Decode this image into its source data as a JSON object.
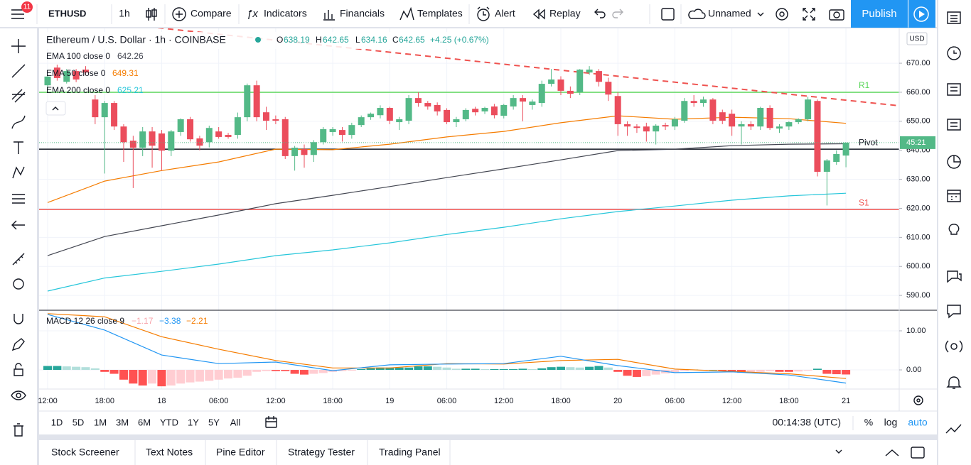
{
  "toolbar": {
    "notification_count": 11,
    "symbol": "ETHUSD",
    "interval": "1h",
    "buttons": [
      "Compare",
      "Indicators",
      "Financials",
      "Templates",
      "Alert",
      "Replay"
    ],
    "layout_name": "Unnamed",
    "publish": "Publish"
  },
  "chart": {
    "title": "Ethereum / U.S. Dollar · 1h · COINBASE",
    "ohlc_names": [
      "O",
      "H",
      "L",
      "C"
    ],
    "ohlc": [
      "638.19",
      "642.65",
      "634.16",
      "642.65"
    ],
    "change": "+4.25 (+0.67%)",
    "currency": "USD",
    "countdown": "45:21",
    "grid": true,
    "up_color": "#53b987",
    "down_color": "#eb4d5c",
    "ylim": [
      584.9,
      682
    ],
    "yticks": [
      {
        "value": 670,
        "label": "670.00"
      },
      {
        "value": 660,
        "label": "660.00"
      },
      {
        "value": 650,
        "label": "650.00"
      },
      {
        "value": 640,
        "label": "640.00"
      },
      {
        "value": 630,
        "label": "630.00"
      },
      {
        "value": 620,
        "label": "620.00"
      },
      {
        "value": 610,
        "label": "610.00"
      },
      {
        "value": 600,
        "label": "600.00"
      },
      {
        "value": 590,
        "label": "590.00"
      }
    ],
    "time_labels": [
      "12:00",
      "18:00",
      "18",
      "06:00",
      "12:00",
      "18:00",
      "19",
      "06:00",
      "12:00",
      "18:00",
      "20",
      "06:00",
      "12:00",
      "18:00",
      "21"
    ],
    "candles": [
      [
        662.4,
        666,
        661,
        665.4
      ],
      [
        668.5,
        669.5,
        664,
        664.9
      ],
      [
        663.6,
        668,
        663,
        667.3
      ],
      [
        667.3,
        668,
        663.5,
        664.4
      ],
      [
        667.8,
        669,
        666,
        666.8
      ],
      [
        657.5,
        659,
        649,
        651.4
      ],
      [
        651.4,
        657,
        632,
        656.3
      ],
      [
        656.3,
        657,
        647,
        648.2
      ],
      [
        648.2,
        649,
        636,
        642.8
      ],
      [
        643.3,
        645,
        627,
        640.9
      ],
      [
        640.9,
        648,
        638,
        646.5
      ],
      [
        646.5,
        648,
        634,
        641.6
      ],
      [
        645.8,
        647,
        633,
        639.9
      ],
      [
        639.9,
        647,
        638,
        646.5
      ],
      [
        646.3,
        651,
        645,
        650.7
      ],
      [
        650.7,
        651.5,
        643,
        643.8
      ],
      [
        644.1,
        645,
        640,
        641.6
      ],
      [
        642.8,
        648.5,
        641,
        647.7
      ],
      [
        646.5,
        648,
        644,
        644.6
      ],
      [
        645.3,
        646,
        644,
        644.6
      ],
      [
        645.3,
        653,
        644,
        651.4
      ],
      [
        651.4,
        663,
        650,
        662.4
      ],
      [
        662.4,
        664,
        650,
        651.4
      ],
      [
        653.1,
        655,
        647,
        650.2
      ],
      [
        650.7,
        652,
        649,
        650.2
      ],
      [
        650.7,
        651.5,
        637,
        638
      ],
      [
        638,
        641.5,
        633,
        640.9
      ],
      [
        640.4,
        642,
        634,
        638.4
      ],
      [
        638.4,
        643.5,
        636,
        642.8
      ],
      [
        642.8,
        648,
        642,
        647.3
      ],
      [
        646.3,
        648,
        645,
        647.3
      ],
      [
        647,
        648,
        643,
        645.3
      ],
      [
        645.3,
        649.5,
        644,
        648.7
      ],
      [
        648.7,
        652,
        648,
        651.4
      ],
      [
        651.4,
        653,
        650.5,
        652.6
      ],
      [
        652.1,
        655.5,
        651,
        654.6
      ],
      [
        654.6,
        655,
        649,
        650.2
      ],
      [
        649.7,
        651.5,
        647,
        650.7
      ],
      [
        650.2,
        659,
        649,
        658
      ],
      [
        658,
        660,
        655,
        656.3
      ],
      [
        656.3,
        657,
        654,
        655.1
      ],
      [
        655.6,
        656.5,
        652,
        653.4
      ],
      [
        653.9,
        654.5,
        649,
        649.7
      ],
      [
        649.7,
        651.5,
        648,
        650.7
      ],
      [
        650.7,
        654.5,
        650,
        653.9
      ],
      [
        654.3,
        655,
        652,
        653.1
      ],
      [
        653.4,
        655,
        652.5,
        654.6
      ],
      [
        655.1,
        656,
        651,
        652.1
      ],
      [
        651.9,
        656,
        651,
        655.6
      ],
      [
        655.1,
        659,
        654,
        658
      ],
      [
        658,
        659,
        650,
        656.8
      ],
      [
        655.6,
        657.5,
        654,
        656.8
      ],
      [
        656.3,
        664,
        655,
        662.9
      ],
      [
        662.9,
        668,
        662,
        664.4
      ],
      [
        664.4,
        665.5,
        659,
        660.5
      ],
      [
        660.5,
        662,
        658,
        659.5
      ],
      [
        660,
        668,
        659,
        667.8
      ],
      [
        666.8,
        669,
        666,
        667.8
      ],
      [
        667.3,
        668,
        662,
        663.6
      ],
      [
        663.6,
        665,
        657,
        659.2
      ],
      [
        658.7,
        660,
        645,
        649
      ],
      [
        649,
        650,
        645,
        648.2
      ],
      [
        648.2,
        649,
        646,
        647.7
      ],
      [
        648.2,
        649.5,
        643,
        646.5
      ],
      [
        646.5,
        649,
        642,
        648.5
      ],
      [
        648.7,
        649.5,
        647,
        648.2
      ],
      [
        648.2,
        651.5,
        647,
        650.7
      ],
      [
        650.2,
        658,
        649.5,
        657
      ],
      [
        657,
        659,
        655,
        656.3
      ],
      [
        656.3,
        658.5,
        655,
        657.5
      ],
      [
        657.5,
        658,
        649,
        650.2
      ],
      [
        653.1,
        654,
        649,
        650.2
      ],
      [
        652.6,
        654,
        645,
        648.2
      ],
      [
        648.2,
        650,
        642,
        649
      ],
      [
        649,
        650,
        647,
        648.2
      ],
      [
        648.2,
        655,
        647,
        654.6
      ],
      [
        654.6,
        655.5,
        647,
        647.7
      ],
      [
        647.5,
        649,
        646,
        648.2
      ],
      [
        648.2,
        650,
        647,
        649.7
      ],
      [
        649.7,
        651,
        649,
        650.7
      ],
      [
        650.7,
        658.5,
        650,
        657.5
      ],
      [
        657,
        657.5,
        631,
        632.6
      ],
      [
        632.6,
        637,
        621,
        636.5
      ],
      [
        636,
        640,
        635,
        638.7
      ],
      [
        638.19,
        642.65,
        634.16,
        642.65
      ]
    ],
    "emas": [
      {
        "name": "EMA 100 close 0",
        "color": "#434651",
        "values": [
          603.7,
          610.3,
          614,
          617.7,
          621.6,
          624.5,
          627.5,
          630.6,
          633.6,
          636.7,
          639.9,
          640.4,
          641.6,
          642.1,
          642.26
        ]
      },
      {
        "name": "EMA 50 close 0",
        "color": "#f57c00",
        "values": [
          622,
          629.4,
          633,
          636,
          640.4,
          640.2,
          642.1,
          644.6,
          646.5,
          649.5,
          651.9,
          650.7,
          651.4,
          650.9,
          649.31
        ]
      },
      {
        "name": "EMA 200 close 0",
        "color": "#26c6da",
        "values": [
          591.5,
          596,
          598.3,
          600.8,
          603.7,
          605.7,
          608.1,
          611,
          613.5,
          616.4,
          618.9,
          620.8,
          622.8,
          624.3,
          625.21
        ]
      }
    ],
    "levels": [
      {
        "name": "R1",
        "value": 660,
        "color": "#5ad65a"
      },
      {
        "name": "Pivot",
        "value": 640.4,
        "color": "#131722"
      },
      {
        "name": "S1",
        "value": 619.6,
        "color": "#ef5350"
      }
    ],
    "macd": {
      "name": "MACD 12 26 close 9",
      "ylim": [
        -4.9,
        15.27
      ],
      "yticks": [
        {
          "value": 10,
          "label": "10.00"
        },
        {
          "value": 0,
          "label": "0.00"
        }
      ],
      "histogram_colors": [
        "#26a69a",
        "#b2dfdb",
        "#ff5252",
        "#ffcdd2"
      ],
      "histogram": [
        1.0,
        1.0,
        0.9,
        0.8,
        0.7,
        0.4,
        -0.5,
        -1.0,
        -2.5,
        -3.5,
        -4.0,
        -3.5,
        -4.2,
        -4.0,
        -3.5,
        -3.2,
        -3.0,
        -2.8,
        -2.5,
        -2.2,
        -2.0,
        -1.5,
        -0.5,
        -0.3,
        -0.3,
        -0.3,
        -1.0,
        -1.2,
        -1.0,
        -0.8,
        -0.5,
        -0.3,
        -0.2,
        0.2,
        0.4,
        0.6,
        0.6,
        0.6,
        0.6,
        0.9,
        0.9,
        0.8,
        0.6,
        0.3,
        0.3,
        0.3,
        0.2,
        0.2,
        0.2,
        0.2,
        0.3,
        0.2,
        0.4,
        0.7,
        0.8,
        0.7,
        0.6,
        0.8,
        1.0,
        0.6,
        -0.5,
        -1.5,
        -1.8,
        -1.6,
        -1.2,
        -0.9,
        -0.6,
        -0.3,
        0.1,
        -0.1,
        0,
        -0.3,
        -0.6,
        -0.7,
        -0.6,
        -0.5,
        -0.3,
        -0.5,
        -0.5,
        -0.4,
        -0.2,
        0.3,
        -1.0,
        -1.1,
        -1.17
      ],
      "macd_line": {
        "color": "#2196f3",
        "values": [
          14.2,
          10.2,
          3.8,
          1.6,
          2.0,
          -0.2,
          1.3,
          1.5,
          1.6,
          3.5,
          1.1,
          -0.7,
          -0.5,
          -1.3,
          -3.38
        ]
      },
      "signal_line": {
        "color": "#f57c00",
        "values": [
          14.4,
          13.6,
          8.5,
          5.3,
          2.4,
          0.5,
          0.5,
          1.6,
          1.5,
          2.4,
          2.7,
          0.2,
          -0.4,
          -1.0,
          -2.21
        ]
      },
      "value_labels": [
        "−1.17",
        "−3.38",
        "−2.21"
      ]
    }
  },
  "range_buttons": [
    "1D",
    "5D",
    "1M",
    "3M",
    "6M",
    "YTD",
    "1Y",
    "5Y",
    "All"
  ],
  "clock": "00:14:38 (UTC)",
  "scale_options": [
    "%",
    "log",
    "auto"
  ],
  "bottom_tabs": [
    "Stock Screener",
    "Text Notes",
    "Pine Editor",
    "Strategy Tester",
    "Trading Panel"
  ]
}
